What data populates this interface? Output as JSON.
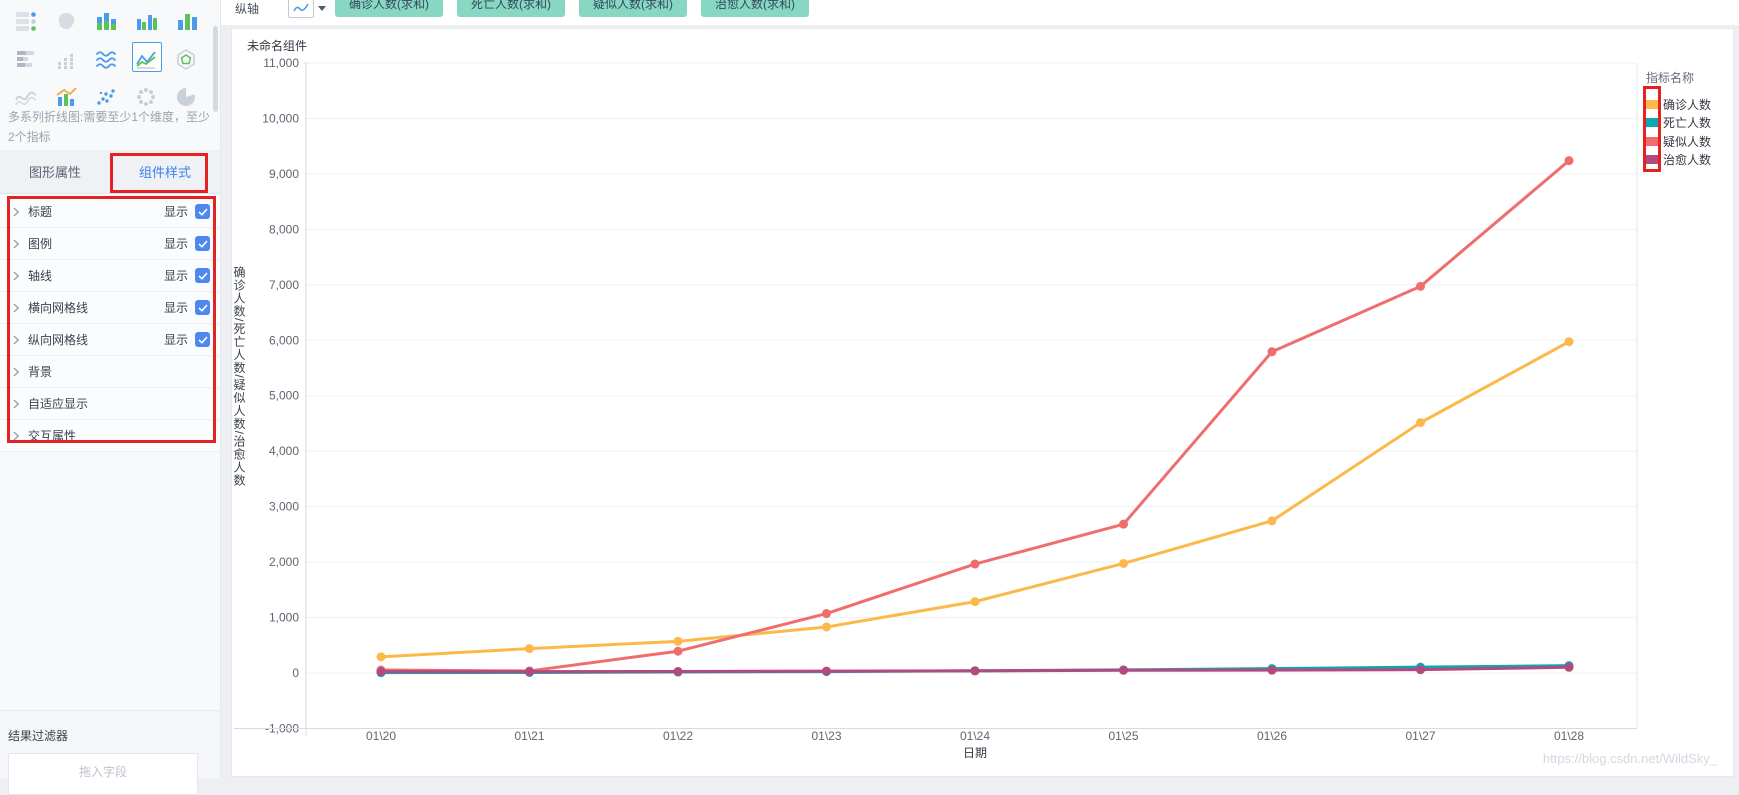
{
  "toolbar": {
    "axis_label": "纵轴",
    "pills": [
      "确诊人数(求和)",
      "死亡人数(求和)",
      "疑似人数(求和)",
      "治愈人数(求和)"
    ]
  },
  "sidebar": {
    "icons": [
      {
        "name": "grouped-table-icon"
      },
      {
        "name": "map-icon"
      },
      {
        "name": "stacked-column-icon"
      },
      {
        "name": "grouped-column-icon"
      },
      {
        "name": "column-icon"
      },
      {
        "name": "stacked-bar-icon"
      },
      {
        "name": "dot-column-icon"
      },
      {
        "name": "area-chart-icon"
      },
      {
        "name": "multi-line-chart-icon",
        "selected": true
      },
      {
        "name": "radar-chart-icon"
      },
      {
        "name": "curve-chart-icon"
      },
      {
        "name": "combo-chart-icon"
      },
      {
        "name": "scatter-chart-icon"
      },
      {
        "name": "bubble-chart-icon"
      },
      {
        "name": "pie-chart-icon"
      }
    ],
    "description": "多系列折线图:需要至少1个维度，至少2个指标",
    "tabs": [
      {
        "label": "图形属性",
        "active": false
      },
      {
        "label": "组件样式",
        "active": true
      }
    ],
    "properties": [
      {
        "label": "标题",
        "show_label": "显示",
        "checked": true
      },
      {
        "label": "图例",
        "show_label": "显示",
        "checked": true
      },
      {
        "label": "轴线",
        "show_label": "显示",
        "checked": true
      },
      {
        "label": "横向网格线",
        "show_label": "显示",
        "checked": true
      },
      {
        "label": "纵向网格线",
        "show_label": "显示",
        "checked": true
      },
      {
        "label": "背景"
      },
      {
        "label": "自适应显示"
      },
      {
        "label": "交互属性"
      }
    ],
    "filter_title": "结果过滤器",
    "drop_placeholder": "拖入字段"
  },
  "panel": {
    "title": "未命名组件"
  },
  "chart_data": {
    "type": "line",
    "title": "未命名组件",
    "x": [
      "01\\20",
      "01\\21",
      "01\\22",
      "01\\23",
      "01\\24",
      "01\\25",
      "01\\26",
      "01\\27",
      "01\\28"
    ],
    "xlabel": "日期",
    "ylabel": "确诊人数/死亡人数/疑似人数/治愈人数",
    "ylim": [
      -1000,
      11000
    ],
    "ytick_step": 1000,
    "grid_horizontal": true,
    "grid_vertical": false,
    "legend_title": "指标名称",
    "legend_position": "right-top",
    "series": [
      {
        "name": "确诊人数",
        "color": "#FBB94B",
        "values": [
          291,
          440,
          571,
          830,
          1287,
          1975,
          2744,
          4515,
          5974
        ]
      },
      {
        "name": "死亡人数",
        "color": "#0CA8B2",
        "values": [
          6,
          9,
          17,
          25,
          41,
          56,
          80,
          106,
          132
        ]
      },
      {
        "name": "疑似人数",
        "color": "#EF6D6D",
        "values": [
          54,
          37,
          393,
          1072,
          1965,
          2684,
          5794,
          6973,
          9239
        ]
      },
      {
        "name": "治愈人数",
        "color": "#B2497F",
        "values": [
          25,
          25,
          28,
          34,
          38,
          49,
          51,
          60,
          103
        ]
      }
    ]
  },
  "watermark": "https://blog.csdn.net/WildSky_",
  "colors": {
    "accent_blue": "#3D7FF0",
    "checkbox_blue": "#4C88F0",
    "pill_teal": "#87D7C2",
    "annotation_red": "#E42222"
  }
}
